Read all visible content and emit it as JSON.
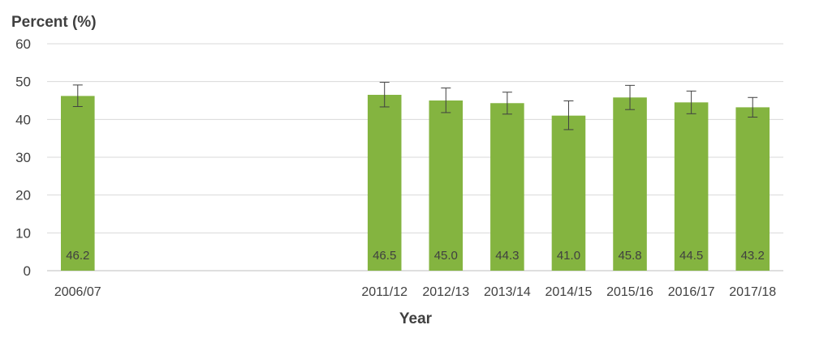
{
  "chart_data": {
    "type": "bar",
    "ylabel": "Percent (%)",
    "xlabel": "Year",
    "ylim": [
      0,
      60
    ],
    "yticks": [
      0,
      10,
      20,
      30,
      40,
      50,
      60
    ],
    "grid": true,
    "categories": [
      "2006/07",
      "",
      "",
      "",
      "",
      "2011/12",
      "2012/13",
      "2013/14",
      "2014/15",
      "2015/16",
      "2016/17",
      "2017/18"
    ],
    "series": [
      {
        "values": [
          46.2,
          null,
          null,
          null,
          null,
          46.5,
          45.0,
          44.3,
          41.0,
          45.8,
          44.5,
          43.2
        ],
        "labels": [
          "46.2",
          "",
          "",
          "",
          "",
          "46.5",
          "45.0",
          "44.3",
          "41.0",
          "45.8",
          "44.5",
          "43.2"
        ],
        "error_low": [
          43.4,
          null,
          null,
          null,
          null,
          43.3,
          41.8,
          41.4,
          37.3,
          42.6,
          41.5,
          40.6
        ],
        "error_high": [
          49.1,
          null,
          null,
          null,
          null,
          49.8,
          48.3,
          47.2,
          44.9,
          49.0,
          47.5,
          45.8
        ]
      }
    ],
    "colors": {
      "bar": "#84b440",
      "grid": "#d9d9d9",
      "axis": "#bfbfbf",
      "error": "#404040"
    }
  }
}
